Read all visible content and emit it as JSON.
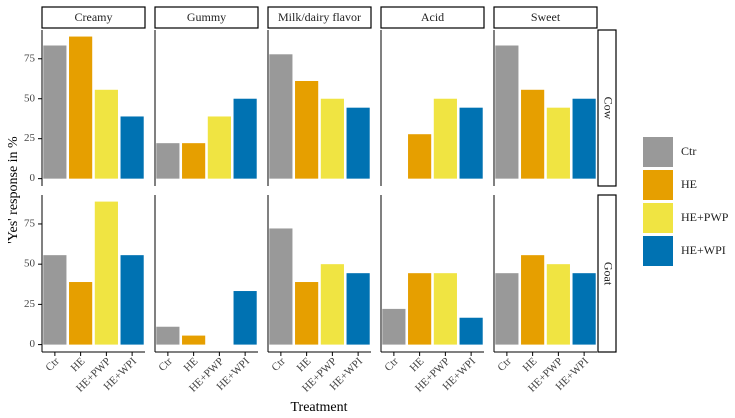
{
  "chart_data": {
    "type": "bar",
    "x_label": "Treatment",
    "y_label": "'Yes' response in %",
    "categories": [
      "Ctr",
      "HE",
      "HE+PWP",
      "HE+WPI"
    ],
    "colors": [
      "#999999",
      "#e69f00",
      "#f0e442",
      "#0072b2"
    ],
    "columns": [
      "Creamy",
      "Gummy",
      "Milk/dairy flavor",
      "Acid",
      "Sweet"
    ],
    "rows": [
      {
        "label": "Cow",
        "values": [
          [
            83.3,
            88.9,
            55.6,
            38.9
          ],
          [
            22.2,
            22.2,
            38.9,
            50
          ],
          [
            77.8,
            61.1,
            50,
            44.4
          ],
          [
            0,
            27.8,
            50,
            44.4
          ],
          [
            83.3,
            55.6,
            44.4,
            50
          ]
        ]
      },
      {
        "label": "Goat",
        "values": [
          [
            55.6,
            38.9,
            88.9,
            55.6
          ],
          [
            11.1,
            5.6,
            0,
            33.3
          ],
          [
            72.2,
            38.9,
            50,
            44.4
          ],
          [
            22.2,
            44.4,
            44.4,
            16.7
          ],
          [
            44.4,
            55.6,
            50,
            44.4
          ]
        ]
      }
    ],
    "ylim": [
      -4.6,
      93
    ],
    "yticks": [
      0,
      25,
      50,
      75
    ],
    "grid": false
  }
}
